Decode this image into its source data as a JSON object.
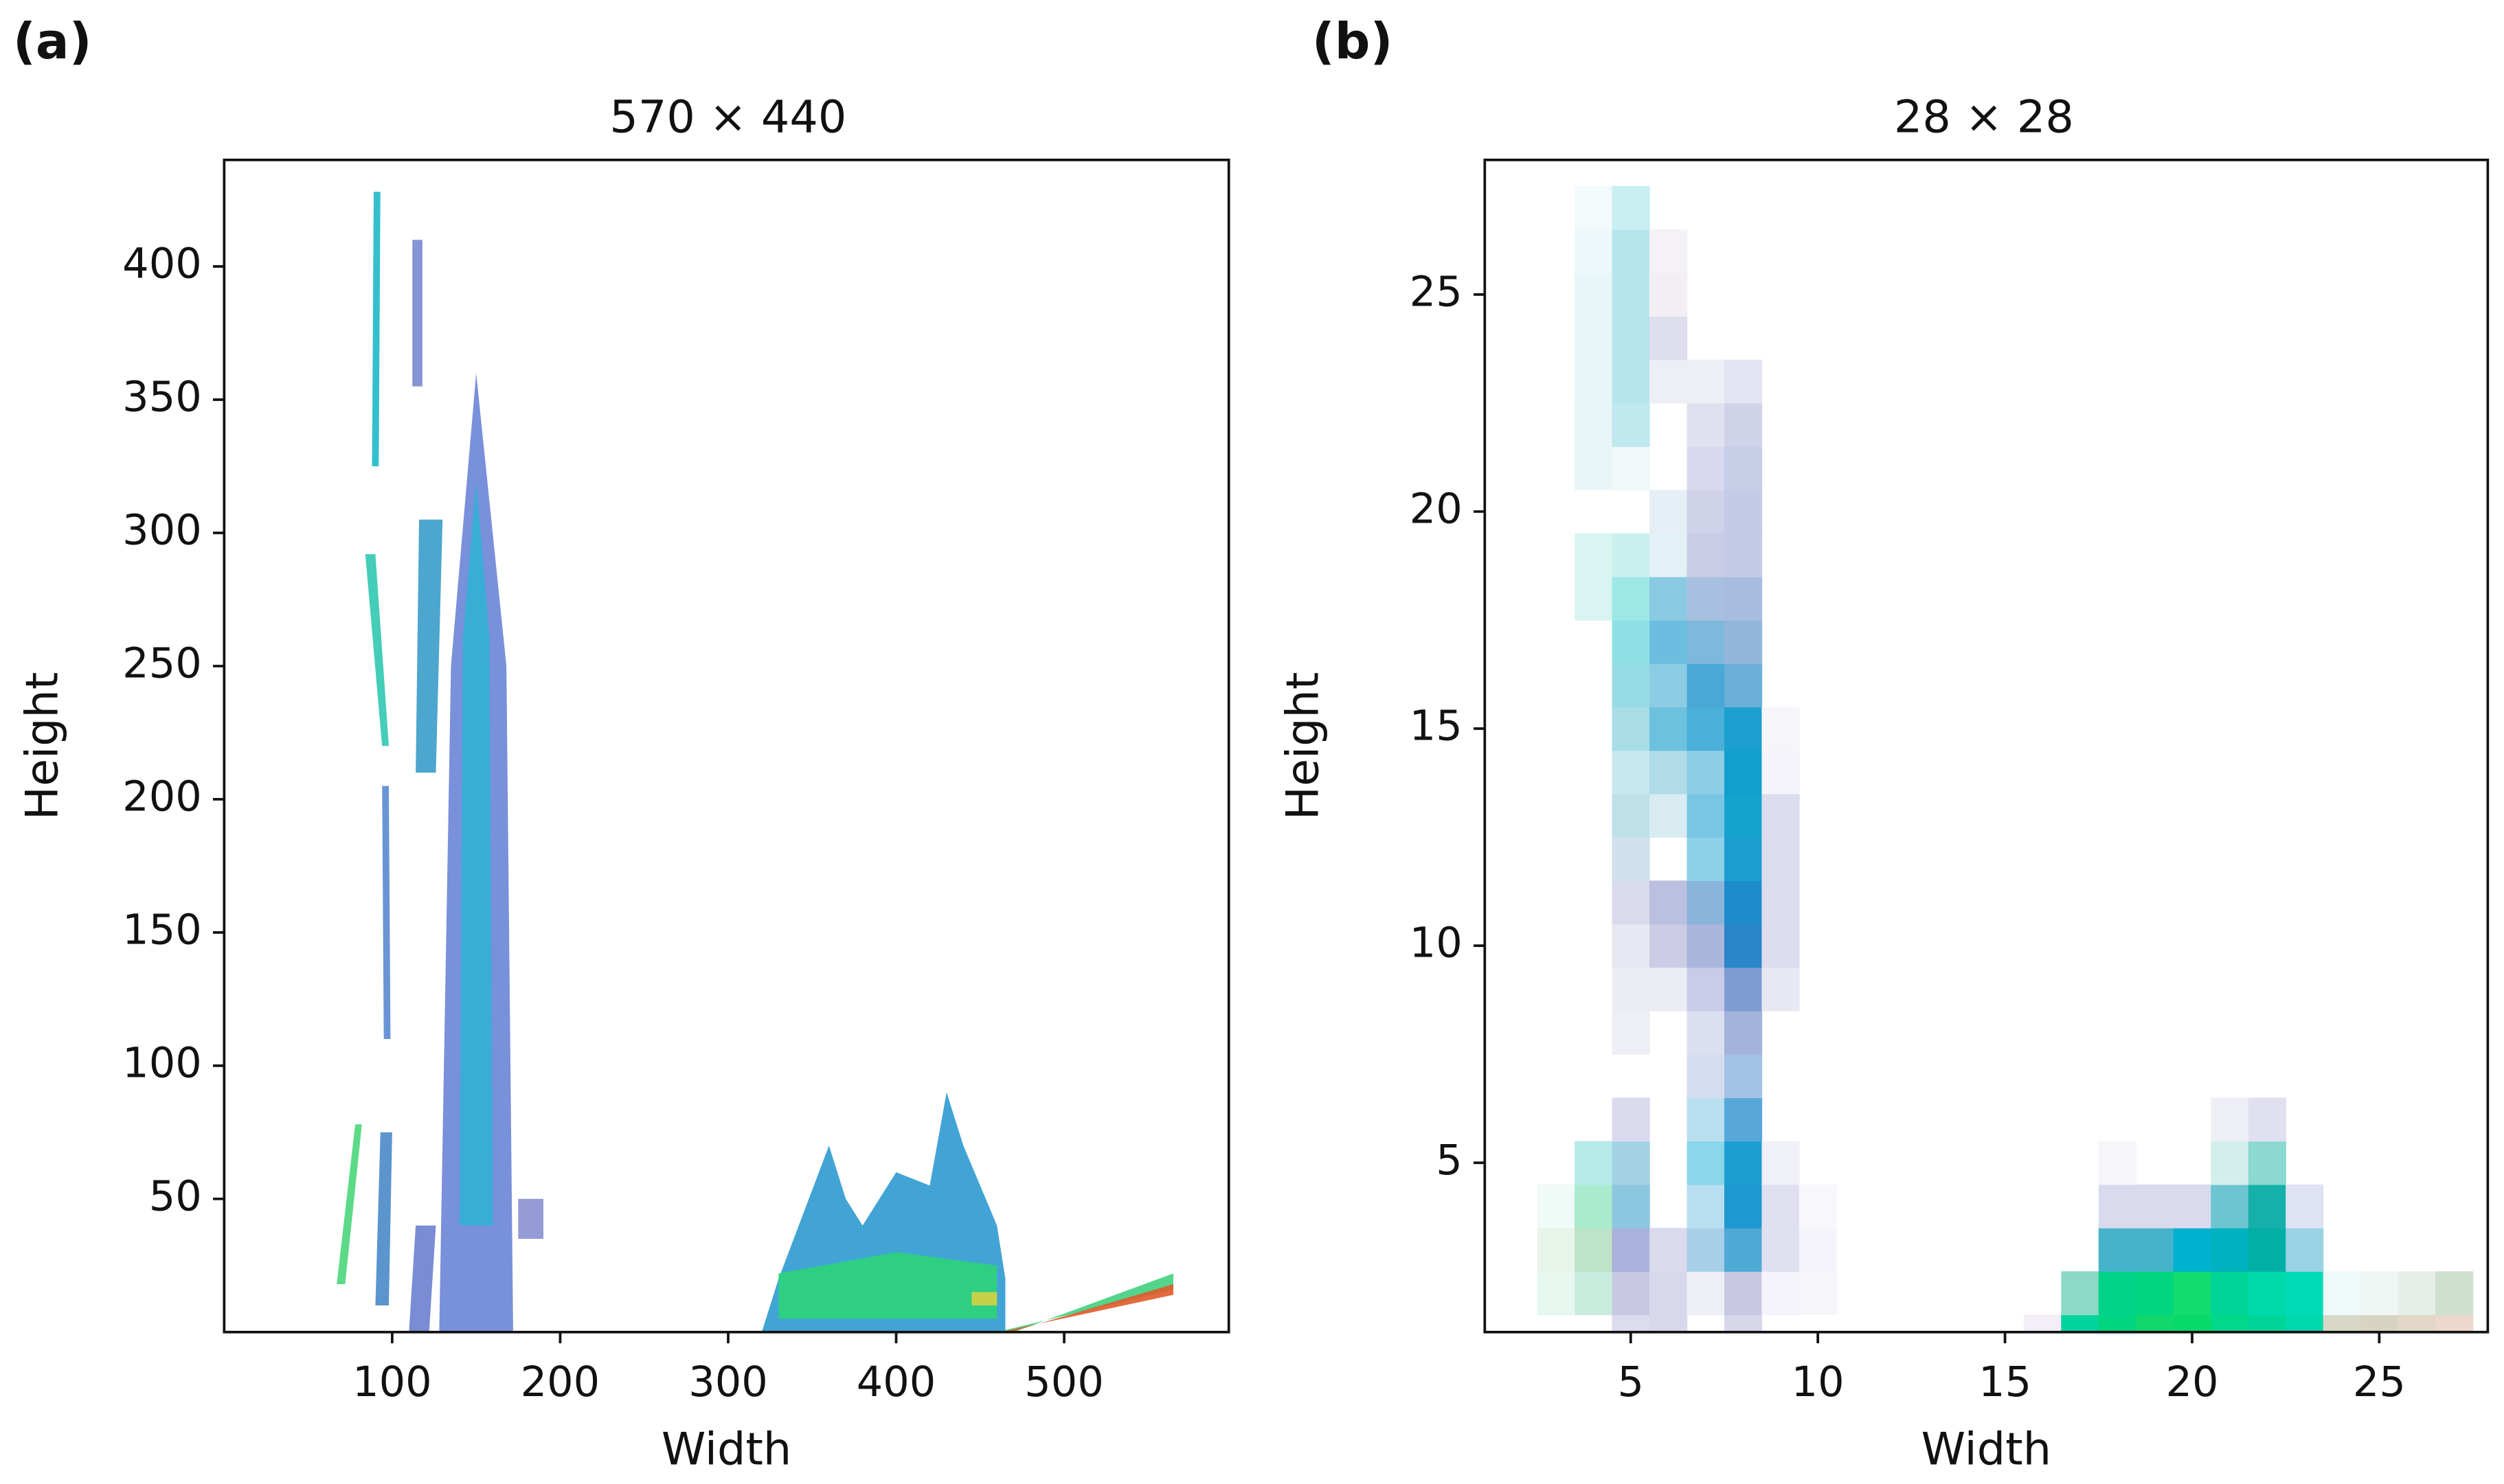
{
  "chart_data": [
    {
      "type": "image",
      "label": "(a)",
      "title": "570 × 440",
      "xlabel": "Width",
      "ylabel": "Height",
      "xlim": [
        0,
        598
      ],
      "ylim": [
        0,
        440
      ],
      "xticks": [
        100,
        200,
        300,
        400,
        500
      ],
      "yticks": [
        50,
        100,
        150,
        200,
        250,
        300,
        350,
        400
      ],
      "shapes": [
        {
          "x": [
            88,
            92,
            93,
            89
          ],
          "y": [
            325,
            325,
            428,
            428
          ],
          "color": "#1fb8c8"
        },
        {
          "x": [
            84,
            90,
            98,
            94
          ],
          "y": [
            292,
            292,
            220,
            220
          ],
          "color": "#30c8b0"
        },
        {
          "x": [
            94,
            98,
            99,
            95
          ],
          "y": [
            205,
            205,
            110,
            110
          ],
          "color": "#5a8ad0"
        },
        {
          "x": [
            67,
            72,
            82,
            78
          ],
          "y": [
            18,
            18,
            78,
            78
          ],
          "color": "#4ad67a"
        },
        {
          "x": [
            90,
            98,
            100,
            93
          ],
          "y": [
            10,
            10,
            75,
            75
          ],
          "color": "#4a88c8"
        },
        {
          "x": [
            114,
            126,
            130,
            116
          ],
          "y": [
            210,
            210,
            305,
            305
          ],
          "color": "#3a9cc8"
        },
        {
          "x": [
            110,
            122,
            126,
            114
          ],
          "y": [
            0,
            0,
            40,
            40
          ],
          "color": "#6a80d0"
        },
        {
          "x": [
            112,
            118,
            118,
            112
          ],
          "y": [
            355,
            355,
            410,
            410
          ],
          "color": "#7a8ad0"
        },
        {
          "x": [
            128,
            172,
            168,
            150,
            135
          ],
          "y": [
            0,
            0,
            250,
            360,
            250
          ],
          "color": "#6a84d6"
        },
        {
          "x": [
            140,
            160,
            158,
            150,
            142
          ],
          "y": [
            40,
            40,
            260,
            320,
            260
          ],
          "color": "#33b0d6"
        },
        {
          "x": [
            175,
            190,
            190,
            175
          ],
          "y": [
            35,
            35,
            50,
            50
          ],
          "color": "#8a90d0"
        },
        {
          "x": [
            320,
            330,
            345,
            360,
            370,
            380,
            400,
            420,
            430,
            440,
            460,
            465,
            465
          ],
          "y": [
            0,
            20,
            45,
            70,
            50,
            40,
            60,
            55,
            90,
            70,
            40,
            20,
            0
          ],
          "color": "#2e9ad0"
        },
        {
          "x": [
            330,
            460,
            460,
            400,
            330
          ],
          "y": [
            5,
            5,
            25,
            30,
            22
          ],
          "color": "#2cd47a"
        },
        {
          "x": [
            445,
            460,
            460,
            445
          ],
          "y": [
            10,
            10,
            15,
            15
          ],
          "color": "#d8d040"
        },
        {
          "x": [
            460,
            565,
            565,
            470
          ],
          "y": [
            0,
            16,
            22,
            0
          ],
          "color": "#40d080"
        },
        {
          "x": [
            462,
            565,
            565,
            468
          ],
          "y": [
            0,
            14,
            18,
            0
          ],
          "color": "#e05a2a"
        }
      ]
    },
    {
      "type": "pixels",
      "label": "(b)",
      "title": "28 × 28",
      "xlabel": "Width",
      "ylabel": "Height",
      "xlim": [
        1.1,
        27.9
      ],
      "ylim": [
        1.1,
        28.1
      ],
      "xticks": [
        5,
        10,
        15,
        20,
        25
      ],
      "yticks": [
        5,
        10,
        15,
        20,
        25
      ],
      "cells": [
        [
          3,
          2,
          "#e6f7f0"
        ],
        [
          3,
          3,
          "#e8f4ea"
        ],
        [
          3,
          4,
          "#f0faf6"
        ],
        [
          4,
          2,
          "#c9ecdf"
        ],
        [
          4,
          3,
          "#bfe3c8"
        ],
        [
          4,
          4,
          "#a9ebcc"
        ],
        [
          4,
          5,
          "#b5eae8"
        ],
        [
          4,
          18,
          "#d8f5f2"
        ],
        [
          4,
          19,
          "#d8f5f2"
        ],
        [
          4,
          21,
          "#e9f6f8"
        ],
        [
          4,
          22,
          "#e9f6f8"
        ],
        [
          4,
          23,
          "#e8f6f8"
        ],
        [
          4,
          24,
          "#e8f6f8"
        ],
        [
          4,
          25,
          "#e8f6f8"
        ],
        [
          4,
          26,
          "#eef8fa"
        ],
        [
          4,
          27,
          "#f2fafc"
        ],
        [
          5,
          1,
          "#dcdcee"
        ],
        [
          5,
          2,
          "#c8c8e2"
        ],
        [
          5,
          3,
          "#a8b2da"
        ],
        [
          5,
          4,
          "#8cc6df"
        ],
        [
          5,
          5,
          "#a3d2e5"
        ],
        [
          5,
          6,
          "#dadaee"
        ],
        [
          5,
          8,
          "#eeeef6"
        ],
        [
          5,
          9,
          "#ececf5"
        ],
        [
          5,
          10,
          "#e8e8f3"
        ],
        [
          5,
          11,
          "#dadaee"
        ],
        [
          5,
          12,
          "#d0e0ec"
        ],
        [
          5,
          13,
          "#bfe0e8"
        ],
        [
          5,
          14,
          "#c8e7ef"
        ],
        [
          5,
          15,
          "#a8dde8"
        ],
        [
          5,
          16,
          "#96dbe5"
        ],
        [
          5,
          17,
          "#8fe0e4"
        ],
        [
          5,
          18,
          "#9ee8e8"
        ],
        [
          5,
          19,
          "#c9f0ef"
        ],
        [
          5,
          21,
          "#f0f8fa"
        ],
        [
          5,
          22,
          "#bfe8ef"
        ],
        [
          5,
          23,
          "#b5e6ec"
        ],
        [
          5,
          24,
          "#b5e6ec"
        ],
        [
          5,
          25,
          "#b5e6ec"
        ],
        [
          5,
          26,
          "#b5e6ec"
        ],
        [
          5,
          27,
          "#c8eef2"
        ],
        [
          6,
          1,
          "#d8d8ec"
        ],
        [
          6,
          2,
          "#d8d8ec"
        ],
        [
          6,
          3,
          "#dadaee"
        ],
        [
          6,
          9,
          "#ececf5"
        ],
        [
          6,
          10,
          "#cccce6"
        ],
        [
          6,
          11,
          "#bcc0e0"
        ],
        [
          6,
          13,
          "#d8ecf2"
        ],
        [
          6,
          14,
          "#b0dbe8"
        ],
        [
          6,
          15,
          "#6cc1df"
        ],
        [
          6,
          16,
          "#8ccde4"
        ],
        [
          6,
          17,
          "#6bbedf"
        ],
        [
          6,
          18,
          "#89c9e2"
        ],
        [
          6,
          19,
          "#e2f2f6"
        ],
        [
          6,
          20,
          "#e6eff6"
        ],
        [
          6,
          23,
          "#eeeef6"
        ],
        [
          6,
          24,
          "#dedeef"
        ],
        [
          6,
          25,
          "#f2eef4"
        ],
        [
          6,
          26,
          "#f4f2f6"
        ],
        [
          7,
          2,
          "#eeeef6"
        ],
        [
          7,
          3,
          "#a7cfe8"
        ],
        [
          7,
          4,
          "#b9def0"
        ],
        [
          7,
          5,
          "#8ad6ea"
        ],
        [
          7,
          6,
          "#b9def0"
        ],
        [
          7,
          7,
          "#d6dcf0"
        ],
        [
          7,
          8,
          "#dcdff0"
        ],
        [
          7,
          9,
          "#c8cce8"
        ],
        [
          7,
          10,
          "#aab6dc"
        ],
        [
          7,
          11,
          "#8ab4dc"
        ],
        [
          7,
          12,
          "#8ed0e8"
        ],
        [
          7,
          13,
          "#78c6e4"
        ],
        [
          7,
          14,
          "#8fcde6"
        ],
        [
          7,
          15,
          "#4ab0d8"
        ],
        [
          7,
          16,
          "#4aa8d6"
        ],
        [
          7,
          17,
          "#7eb8dc"
        ],
        [
          7,
          18,
          "#a8c0e0"
        ],
        [
          7,
          19,
          "#c8cce6"
        ],
        [
          7,
          20,
          "#d0d2ea"
        ],
        [
          7,
          21,
          "#d8d8ee"
        ],
        [
          7,
          22,
          "#e0e0f0"
        ],
        [
          7,
          23,
          "#eeeef6"
        ],
        [
          8,
          1,
          "#d7d7ec"
        ],
        [
          8,
          2,
          "#c8c8e2"
        ],
        [
          8,
          3,
          "#4fa9d5"
        ],
        [
          8,
          4,
          "#1e98cf"
        ],
        [
          8,
          5,
          "#1b9fcf"
        ],
        [
          8,
          6,
          "#57a7d8"
        ],
        [
          8,
          7,
          "#a4c2e6"
        ],
        [
          8,
          8,
          "#a3b3dc"
        ],
        [
          8,
          9,
          "#7f9cd1"
        ],
        [
          8,
          10,
          "#2a86c9"
        ],
        [
          8,
          11,
          "#1e8ccb"
        ],
        [
          8,
          12,
          "#1a9ecf"
        ],
        [
          8,
          13,
          "#14a3cc"
        ],
        [
          8,
          14,
          "#119fcc"
        ],
        [
          8,
          15,
          "#1ca0d0"
        ],
        [
          8,
          16,
          "#6aafd8"
        ],
        [
          8,
          17,
          "#93b5dc"
        ],
        [
          8,
          18,
          "#a8bcdf"
        ],
        [
          8,
          19,
          "#c5cbe6"
        ],
        [
          8,
          20,
          "#c5cbe6"
        ],
        [
          8,
          21,
          "#c8cde8"
        ],
        [
          8,
          22,
          "#d0d2ea"
        ],
        [
          8,
          23,
          "#e4e4f2"
        ],
        [
          9,
          2,
          "#f4f4fa"
        ],
        [
          9,
          3,
          "#e0e0f0"
        ],
        [
          9,
          4,
          "#e0e0f0"
        ],
        [
          9,
          5,
          "#f0f0f8"
        ],
        [
          9,
          9,
          "#e8e8f4"
        ],
        [
          9,
          10,
          "#dcdcee"
        ],
        [
          9,
          11,
          "#dcdcee"
        ],
        [
          9,
          12,
          "#dcdcee"
        ],
        [
          9,
          13,
          "#dcdcee"
        ],
        [
          9,
          14,
          "#f4f4fa"
        ],
        [
          9,
          15,
          "#f6f6fa"
        ],
        [
          10,
          2,
          "#f6f6fa"
        ],
        [
          10,
          3,
          "#f4f4fa"
        ],
        [
          10,
          4,
          "#f8f8fc"
        ],
        [
          16,
          1,
          "#f4eef6"
        ],
        [
          17,
          1,
          "#00d49c"
        ],
        [
          17,
          2,
          "#8cd9c6"
        ],
        [
          18,
          1,
          "#00d57f"
        ],
        [
          18,
          2,
          "#00d38a"
        ],
        [
          18,
          3,
          "#45b3c9"
        ],
        [
          18,
          4,
          "#dadaee"
        ],
        [
          18,
          5,
          "#f6f6fa"
        ],
        [
          19,
          1,
          "#12d86b"
        ],
        [
          19,
          2,
          "#00d67d"
        ],
        [
          19,
          3,
          "#45b3c9"
        ],
        [
          19,
          4,
          "#dadaee"
        ],
        [
          20,
          1,
          "#09d96a"
        ],
        [
          20,
          2,
          "#14dc70"
        ],
        [
          20,
          3,
          "#00b2cf"
        ],
        [
          20,
          4,
          "#dadaee"
        ],
        [
          21,
          1,
          "#00d88c"
        ],
        [
          21,
          2,
          "#00d496"
        ],
        [
          21,
          3,
          "#00b2c0"
        ],
        [
          21,
          4,
          "#6ec5d2"
        ],
        [
          21,
          5,
          "#d3efec"
        ],
        [
          21,
          6,
          "#eeeef6"
        ],
        [
          22,
          1,
          "#00d598"
        ],
        [
          22,
          2,
          "#00d9ab"
        ],
        [
          22,
          3,
          "#03b0a5"
        ],
        [
          22,
          4,
          "#14b0a9"
        ],
        [
          22,
          5,
          "#8cd8d3"
        ],
        [
          22,
          6,
          "#e0e0f0"
        ],
        [
          23,
          1,
          "#00d8ad"
        ],
        [
          23,
          2,
          "#00dbb6"
        ],
        [
          23,
          3,
          "#9ad3e3"
        ],
        [
          23,
          4,
          "#dfe2f2"
        ],
        [
          24,
          1,
          "#d7d9c6"
        ],
        [
          24,
          2,
          "#eefafa"
        ],
        [
          25,
          1,
          "#d8d4c2"
        ],
        [
          25,
          2,
          "#eff5f2"
        ],
        [
          26,
          1,
          "#e3d8c8"
        ],
        [
          26,
          2,
          "#e5eee7"
        ],
        [
          27,
          1,
          "#eed7cc"
        ],
        [
          27,
          2,
          "#d0e0d0"
        ]
      ]
    }
  ]
}
